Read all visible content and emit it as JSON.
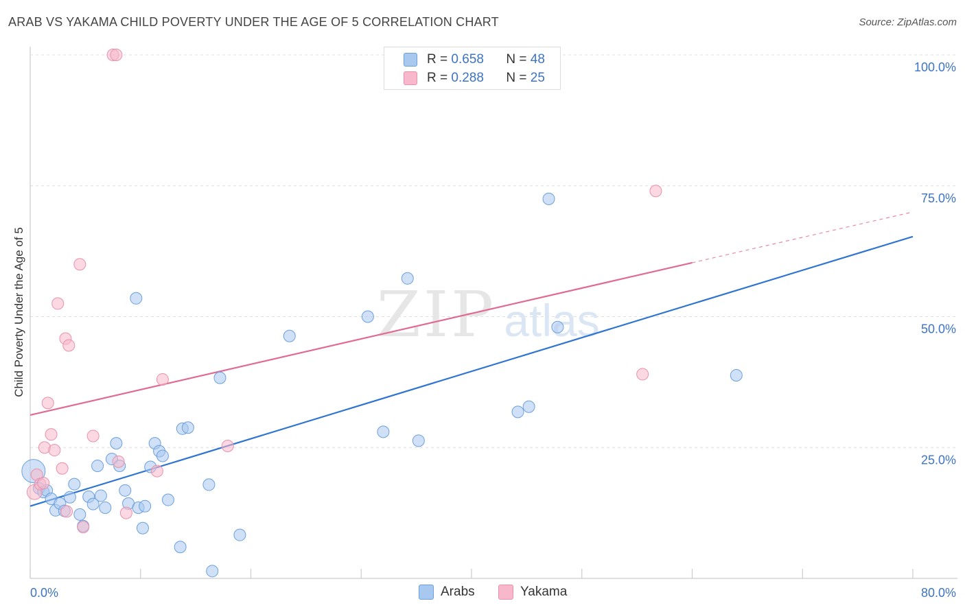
{
  "header": {
    "title": "ARAB VS YAKAMA CHILD POVERTY UNDER THE AGE OF 5 CORRELATION CHART",
    "source": "Source: ZipAtlas.com"
  },
  "legend_top": {
    "rows": [
      {
        "r_label": "R =",
        "r_value": "0.658",
        "n_label": "N =",
        "n_value": "48",
        "color": "#a9c8f0"
      },
      {
        "r_label": "R =",
        "r_value": "0.288",
        "n_label": "N =",
        "n_value": "25",
        "color": "#f7b8cb"
      }
    ]
  },
  "legend_bottom": {
    "items": [
      {
        "label": "Arabs",
        "color": "#a9c8f0"
      },
      {
        "label": "Yakama",
        "color": "#f7b8cb"
      }
    ]
  },
  "watermark": {
    "zip": "ZIP",
    "atlas": "atlas"
  },
  "colors": {
    "arab_fill": "#a9c8f0",
    "arab_stroke": "#6b9fdc",
    "arab_line": "#2f74d0",
    "yakama_fill": "#f7b8cb",
    "yakama_stroke": "#e890ab",
    "yakama_line": "#e06a90",
    "tick_label": "#3c73c4"
  },
  "chart_data": {
    "type": "scatter",
    "title": "ARAB VS YAKAMA CHILD POVERTY UNDER THE AGE OF 5 CORRELATION CHART",
    "xlabel": "",
    "ylabel": "Child Poverty Under the Age of 5",
    "xlim": [
      0,
      80
    ],
    "ylim": [
      0,
      100
    ],
    "x_tick_labels": [
      "0.0%",
      "80.0%"
    ],
    "y_tick_labels": [
      "100.0%",
      "75.0%",
      "50.0%",
      "25.0%"
    ],
    "y_ticks": [
      100,
      75,
      50,
      25
    ],
    "grid": true,
    "legend_position": "top-center",
    "series": [
      {
        "name": "Arabs",
        "R": 0.658,
        "N": 48,
        "trend": {
          "x": [
            0,
            80
          ],
          "y": [
            13.8,
            65.3
          ]
        },
        "points": [
          [
            0.3,
            20.5
          ],
          [
            0.8,
            17.2
          ],
          [
            1.2,
            16.5
          ],
          [
            1.5,
            16.8
          ],
          [
            1.9,
            15.2
          ],
          [
            2.3,
            13.0
          ],
          [
            2.7,
            14.3
          ],
          [
            3.1,
            12.9
          ],
          [
            3.6,
            15.5
          ],
          [
            4.0,
            18.0
          ],
          [
            4.5,
            12.2
          ],
          [
            4.8,
            10.0
          ],
          [
            5.3,
            15.6
          ],
          [
            5.7,
            14.2
          ],
          [
            6.1,
            21.5
          ],
          [
            6.4,
            15.8
          ],
          [
            6.8,
            13.5
          ],
          [
            7.4,
            22.8
          ],
          [
            7.8,
            25.8
          ],
          [
            8.1,
            21.5
          ],
          [
            8.6,
            16.8
          ],
          [
            8.9,
            14.3
          ],
          [
            9.6,
            53.5
          ],
          [
            9.8,
            13.5
          ],
          [
            10.2,
            9.6
          ],
          [
            10.4,
            13.8
          ],
          [
            10.9,
            21.3
          ],
          [
            11.3,
            25.8
          ],
          [
            11.7,
            24.3
          ],
          [
            12.0,
            23.4
          ],
          [
            12.5,
            15.0
          ],
          [
            13.6,
            6.0
          ],
          [
            13.8,
            28.6
          ],
          [
            14.3,
            28.8
          ],
          [
            16.2,
            17.9
          ],
          [
            16.5,
            1.4
          ],
          [
            17.2,
            38.3
          ],
          [
            19.0,
            8.3
          ],
          [
            23.5,
            46.3
          ],
          [
            30.6,
            50.0
          ],
          [
            32.0,
            28.0
          ],
          [
            34.2,
            57.3
          ],
          [
            35.2,
            26.3
          ],
          [
            44.2,
            31.8
          ],
          [
            45.2,
            32.8
          ],
          [
            47.0,
            72.5
          ],
          [
            47.8,
            48.0
          ],
          [
            64.0,
            38.8
          ]
        ]
      },
      {
        "name": "Yakama",
        "R": 0.288,
        "N": 25,
        "trend": {
          "x": [
            0,
            60
          ],
          "y": [
            31.2,
            60.3
          ]
        },
        "trend_dashed": {
          "x": [
            60,
            80
          ],
          "y": [
            60.3,
            70.0
          ]
        },
        "points": [
          [
            0.4,
            16.5
          ],
          [
            0.6,
            19.8
          ],
          [
            0.9,
            18.0
          ],
          [
            1.2,
            18.2
          ],
          [
            1.3,
            25.0
          ],
          [
            1.6,
            33.5
          ],
          [
            1.9,
            27.5
          ],
          [
            2.2,
            24.5
          ],
          [
            2.5,
            52.5
          ],
          [
            2.9,
            21.0
          ],
          [
            3.2,
            45.8
          ],
          [
            3.3,
            12.8
          ],
          [
            3.5,
            44.5
          ],
          [
            4.5,
            60.0
          ],
          [
            4.8,
            9.8
          ],
          [
            5.7,
            27.2
          ],
          [
            7.5,
            100.0
          ],
          [
            7.8,
            100.0
          ],
          [
            8.0,
            22.3
          ],
          [
            8.7,
            12.5
          ],
          [
            11.5,
            20.5
          ],
          [
            12.0,
            38.0
          ],
          [
            17.9,
            25.3
          ],
          [
            55.5,
            39.0
          ],
          [
            56.7,
            74.0
          ]
        ]
      }
    ]
  }
}
